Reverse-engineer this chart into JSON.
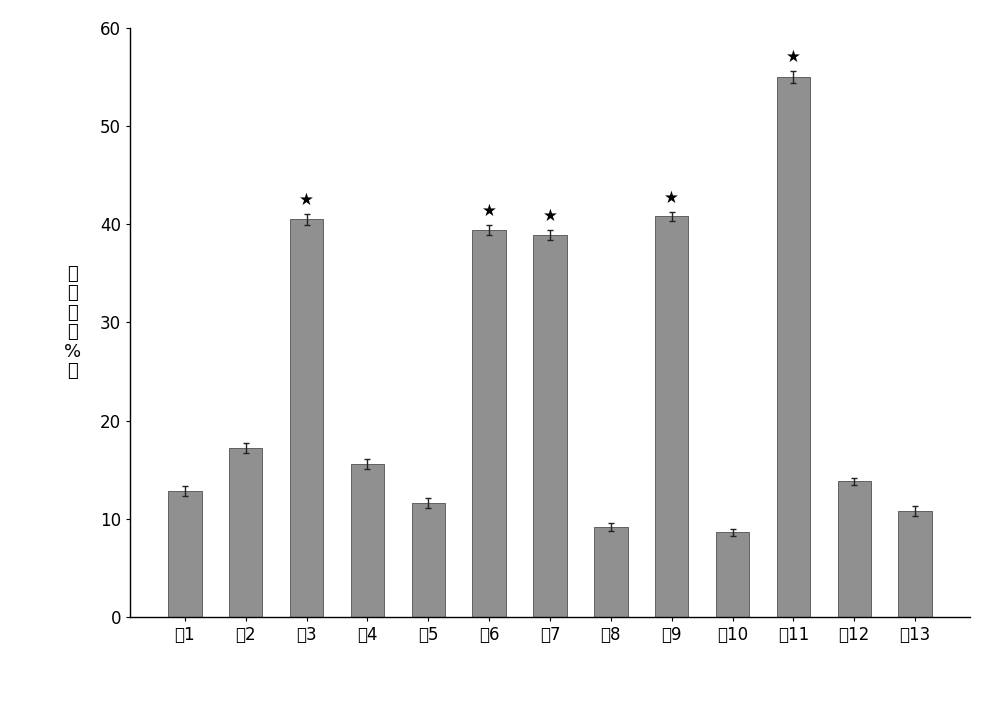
{
  "categories": [
    "联1",
    "联2",
    "联3",
    "联4",
    "联5",
    "联6",
    "联7",
    "联8",
    "联9",
    "联10",
    "联11",
    "联12",
    "联13"
  ],
  "values": [
    12.8,
    17.2,
    40.5,
    15.6,
    11.6,
    39.4,
    38.9,
    9.2,
    40.8,
    8.6,
    55.0,
    13.8,
    10.8
  ],
  "errors": [
    0.5,
    0.5,
    0.6,
    0.5,
    0.5,
    0.5,
    0.5,
    0.4,
    0.5,
    0.4,
    0.6,
    0.4,
    0.5
  ],
  "star_indices": [
    2,
    5,
    6,
    8,
    10
  ],
  "bar_color": "#909090",
  "bar_edgecolor": "#606060",
  "error_color": "#222222",
  "background_color": "#ffffff",
  "ylabel_chars": [
    "抑",
    "制",
    "率",
    "（",
    "%",
    "）"
  ],
  "ylim": [
    0,
    60
  ],
  "yticks": [
    0,
    10,
    20,
    30,
    40,
    50,
    60
  ],
  "label_fontsize": 13,
  "tick_fontsize": 12,
  "bar_width": 0.55
}
